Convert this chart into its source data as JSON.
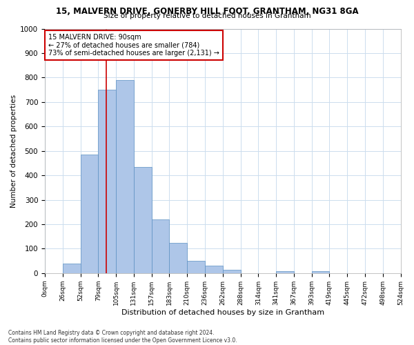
{
  "title1": "15, MALVERN DRIVE, GONERBY HILL FOOT, GRANTHAM, NG31 8GA",
  "title2": "Size of property relative to detached houses in Grantham",
  "xlabel": "Distribution of detached houses by size in Grantham",
  "ylabel": "Number of detached properties",
  "annotation_line1": "15 MALVERN DRIVE: 90sqm",
  "annotation_line2": "← 27% of detached houses are smaller (784)",
  "annotation_line3": "73% of semi-detached houses are larger (2,131) →",
  "property_line_index": 3.46,
  "bin_counts": [
    0,
    40,
    485,
    750,
    790,
    435,
    220,
    125,
    50,
    30,
    15,
    0,
    0,
    8,
    0,
    8,
    0,
    0,
    0,
    0
  ],
  "bar_color": "#aec6e8",
  "bar_edge_color": "#5a8fc2",
  "property_line_color": "#cc0000",
  "grid_color": "#ccddee",
  "background_color": "#ffffff",
  "annotation_box_color": "#ffffff",
  "annotation_box_edge": "#cc0000",
  "tick_labels": [
    "0sqm",
    "26sqm",
    "52sqm",
    "79sqm",
    "105sqm",
    "131sqm",
    "157sqm",
    "183sqm",
    "210sqm",
    "236sqm",
    "262sqm",
    "288sqm",
    "314sqm",
    "341sqm",
    "367sqm",
    "393sqm",
    "419sqm",
    "445sqm",
    "472sqm",
    "498sqm",
    "524sqm"
  ],
  "ylim": [
    0,
    1000
  ],
  "yticks": [
    0,
    100,
    200,
    300,
    400,
    500,
    600,
    700,
    800,
    900,
    1000
  ],
  "footer1": "Contains HM Land Registry data © Crown copyright and database right 2024.",
  "footer2": "Contains public sector information licensed under the Open Government Licence v3.0."
}
